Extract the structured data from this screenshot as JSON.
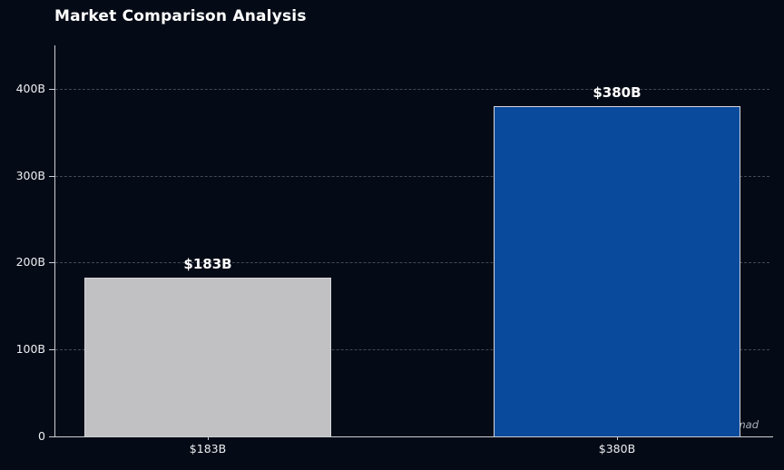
{
  "title": "Market Comparison Analysis",
  "watermark": "Data Analysis by Salman Ahmad",
  "colors": {
    "background": "#050b16",
    "axis": "#c9ced6",
    "gridline": "rgba(165,175,190,0.38)",
    "title_text": "#ffffff",
    "tick_text": "#eceef2",
    "watermark_text": "rgba(200,207,218,0.85)"
  },
  "chart_data": {
    "type": "bar",
    "title": "Market Comparison Analysis",
    "categories": [
      "$183B",
      "$380B"
    ],
    "values": [
      183,
      380
    ],
    "bar_labels": [
      "$183B",
      "$380B"
    ],
    "bar_colors": [
      "#c1c1c3",
      "#0a4a9c"
    ],
    "bar_edge_color": "#d3d6db",
    "xlabel": "",
    "ylabel": "",
    "ylim": [
      0,
      450
    ],
    "yticks": [
      0,
      100,
      200,
      300,
      400
    ],
    "ytick_labels": [
      "0",
      "100B",
      "200B",
      "300B",
      "400B"
    ],
    "grid": "horizontal-dashed",
    "legend": "none",
    "annotation": "Data Analysis by Salman Ahmad"
  }
}
